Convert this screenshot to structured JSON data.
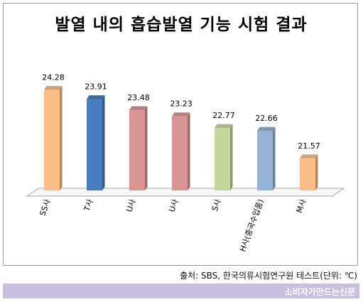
{
  "chart_data": {
    "type": "bar",
    "title": "발열 내의 흡습발열 기능 시험 결과",
    "categories": [
      "SS사",
      "T사",
      "U사",
      "U사",
      "S사",
      "H사(중국수입품)",
      "M사"
    ],
    "values": [
      24.28,
      23.91,
      23.48,
      23.23,
      22.77,
      22.66,
      21.57
    ],
    "value_labels": [
      "24.28",
      "23.91",
      "23.48",
      "23.23",
      "22.77",
      "22.66",
      "21.57"
    ],
    "colors": [
      "#f9bd86",
      "#4a7cc0",
      "#d99594",
      "#d99594",
      "#c3d69b",
      "#95b3d7",
      "#f9bd86"
    ],
    "ylim": [
      20.3,
      24.6
    ],
    "xlabel": "",
    "ylabel": "",
    "grid": false,
    "legend": "none"
  },
  "source": "출처: SBS, 한국의류시험연구원 테스트(단위: ℃)",
  "footer": "소비자가만드는신문"
}
